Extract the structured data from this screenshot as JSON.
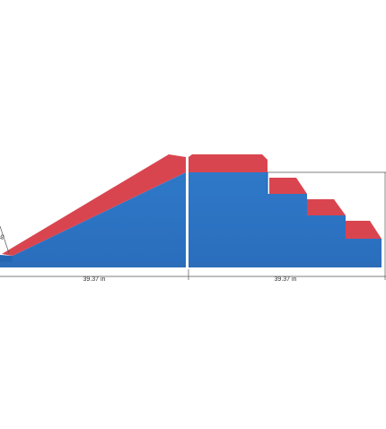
{
  "dimensions": {
    "left_width": "39.37 in",
    "right_width": "39.37 in",
    "side_height": "in"
  }
}
